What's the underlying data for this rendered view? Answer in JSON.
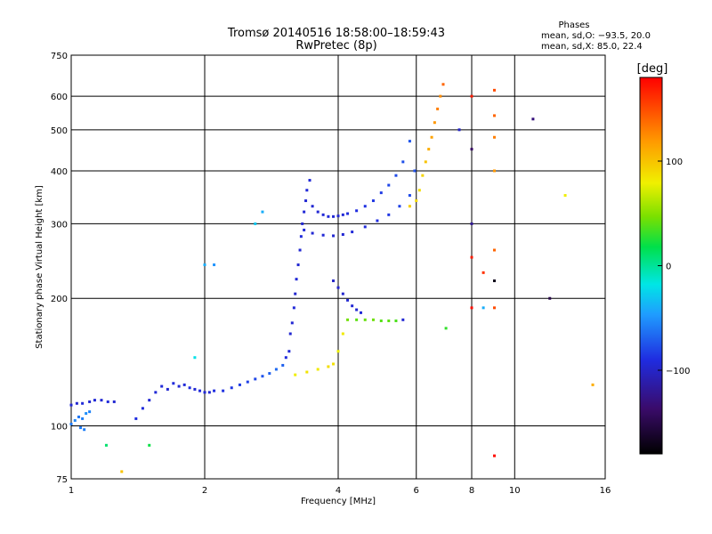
{
  "chart_data": {
    "type": "scatter",
    "title": "Tromsø 20140516 18:58:00–18:59:43",
    "subtitle": "RwPretec (8p)",
    "xlabel": "Frequency [MHz]",
    "ylabel": "Stationary phase Virtual Height [km]",
    "xscale": "log",
    "yscale": "log",
    "xlim": [
      1,
      16
    ],
    "ylim": [
      75,
      750
    ],
    "x_ticks": [
      1,
      2,
      4,
      6,
      8,
      10,
      16
    ],
    "x_tick_labels": [
      "1",
      "2",
      "4",
      "6",
      "8",
      "10",
      "16"
    ],
    "y_ticks": [
      75,
      100,
      200,
      300,
      400,
      500,
      600,
      750
    ],
    "y_tick_labels": [
      "75",
      "100",
      "200",
      "300",
      "400",
      "500",
      "600",
      "750"
    ],
    "grid": true,
    "colorbar": {
      "label": "[deg]",
      "range": [
        -180,
        180
      ],
      "ticks": [
        100,
        0,
        -100
      ],
      "tick_labels": [
        "100",
        "0",
        "−100"
      ],
      "colormap": "rainbow"
    },
    "stats": {
      "title": "Phases",
      "line1": "mean, sd,O: −93.5, 20.0",
      "line2": "mean, sd,X: 85.0, 22.4"
    },
    "points": [
      [
        1.0,
        112,
        -95
      ],
      [
        1.03,
        113,
        -97
      ],
      [
        1.06,
        113,
        -93
      ],
      [
        1.1,
        114,
        -96
      ],
      [
        1.13,
        115,
        -94
      ],
      [
        1.17,
        115,
        -95
      ],
      [
        1.21,
        114,
        -92
      ],
      [
        1.25,
        114,
        -96
      ],
      [
        1.0,
        101,
        -60
      ],
      [
        1.02,
        103,
        -55
      ],
      [
        1.04,
        105,
        -62
      ],
      [
        1.06,
        104,
        -58
      ],
      [
        1.08,
        107,
        -52
      ],
      [
        1.1,
        108,
        -57
      ],
      [
        1.05,
        99,
        -60
      ],
      [
        1.07,
        98,
        -58
      ],
      [
        1.4,
        104,
        -90
      ],
      [
        1.45,
        110,
        -92
      ],
      [
        1.5,
        115,
        -95
      ],
      [
        1.55,
        120,
        -94
      ],
      [
        1.6,
        124,
        -93
      ],
      [
        1.65,
        122,
        -96
      ],
      [
        1.7,
        126,
        -92
      ],
      [
        1.75,
        124,
        -95
      ],
      [
        1.8,
        125,
        -93
      ],
      [
        1.85,
        123,
        -91
      ],
      [
        1.9,
        122,
        -95
      ],
      [
        1.95,
        121,
        -92
      ],
      [
        2.0,
        120,
        -94
      ],
      [
        2.05,
        120,
        -96
      ],
      [
        2.1,
        121,
        -90
      ],
      [
        2.2,
        121,
        -88
      ],
      [
        2.3,
        123,
        -86
      ],
      [
        2.4,
        125,
        -84
      ],
      [
        2.5,
        127,
        -82
      ],
      [
        2.6,
        129,
        -80
      ],
      [
        2.7,
        131,
        -75
      ],
      [
        2.8,
        133,
        -70
      ],
      [
        2.9,
        136,
        -66
      ],
      [
        3.0,
        139,
        -70
      ],
      [
        3.05,
        145,
        -92
      ],
      [
        3.1,
        150,
        -94
      ],
      [
        3.12,
        165,
        -96
      ],
      [
        3.15,
        175,
        -95
      ],
      [
        3.18,
        190,
        -93
      ],
      [
        3.2,
        205,
        -97
      ],
      [
        3.22,
        222,
        -94
      ],
      [
        3.25,
        240,
        -96
      ],
      [
        3.28,
        260,
        -95
      ],
      [
        3.3,
        280,
        -92
      ],
      [
        3.32,
        300,
        -96
      ],
      [
        3.35,
        320,
        -94
      ],
      [
        3.38,
        340,
        -95
      ],
      [
        3.4,
        360,
        -93
      ],
      [
        3.45,
        380,
        -94
      ],
      [
        3.5,
        330,
        -96
      ],
      [
        3.6,
        320,
        -95
      ],
      [
        3.7,
        315,
        -94
      ],
      [
        3.8,
        312,
        -93
      ],
      [
        3.9,
        312,
        -95
      ],
      [
        4.0,
        313,
        -96
      ],
      [
        4.1,
        315,
        -94
      ],
      [
        4.2,
        317,
        -92
      ],
      [
        4.4,
        322,
        -90
      ],
      [
        4.6,
        330,
        -88
      ],
      [
        4.8,
        340,
        -86
      ],
      [
        5.0,
        355,
        -84
      ],
      [
        5.2,
        370,
        -80
      ],
      [
        5.4,
        390,
        -78
      ],
      [
        5.6,
        420,
        -76
      ],
      [
        5.8,
        470,
        -74
      ],
      [
        3.35,
        290,
        -93
      ],
      [
        3.5,
        285,
        -95
      ],
      [
        3.7,
        282,
        -94
      ],
      [
        3.9,
        281,
        -96
      ],
      [
        4.1,
        283,
        -95
      ],
      [
        4.3,
        287,
        -93
      ],
      [
        4.6,
        295,
        -92
      ],
      [
        4.9,
        305,
        -90
      ],
      [
        5.2,
        315,
        -86
      ],
      [
        5.5,
        330,
        -82
      ],
      [
        5.8,
        350,
        -78
      ],
      [
        5.95,
        400,
        -76
      ],
      [
        3.9,
        220,
        -100
      ],
      [
        4.0,
        212,
        -98
      ],
      [
        4.1,
        205,
        -97
      ],
      [
        4.2,
        198,
        -96
      ],
      [
        4.3,
        192,
        -95
      ],
      [
        4.4,
        188,
        -96
      ],
      [
        4.5,
        185,
        -94
      ],
      [
        4.2,
        178,
        45
      ],
      [
        4.4,
        178,
        40
      ],
      [
        4.6,
        178,
        42
      ],
      [
        4.8,
        178,
        44
      ],
      [
        5.0,
        177,
        38
      ],
      [
        5.2,
        177,
        40
      ],
      [
        5.4,
        177,
        36
      ],
      [
        5.6,
        178,
        -95
      ],
      [
        3.2,
        132,
        80
      ],
      [
        3.4,
        134,
        85
      ],
      [
        3.6,
        136,
        82
      ],
      [
        3.8,
        138,
        88
      ],
      [
        3.9,
        140,
        86
      ],
      [
        4.0,
        150,
        78
      ],
      [
        4.1,
        165,
        82
      ],
      [
        5.8,
        330,
        95
      ],
      [
        6.0,
        340,
        90
      ],
      [
        6.1,
        360,
        88
      ],
      [
        6.2,
        390,
        92
      ],
      [
        6.3,
        420,
        100
      ],
      [
        6.4,
        450,
        110
      ],
      [
        6.5,
        480,
        115
      ],
      [
        6.6,
        520,
        120
      ],
      [
        6.7,
        560,
        130
      ],
      [
        6.8,
        600,
        125
      ],
      [
        6.9,
        640,
        140
      ],
      [
        8.0,
        600,
        170
      ],
      [
        8.0,
        450,
        -140
      ],
      [
        8.0,
        300,
        -120
      ],
      [
        8.0,
        250,
        170
      ],
      [
        8.0,
        190,
        175
      ],
      [
        8.5,
        190,
        -40
      ],
      [
        8.5,
        230,
        160
      ],
      [
        9.0,
        620,
        150
      ],
      [
        9.0,
        540,
        140
      ],
      [
        9.0,
        480,
        130
      ],
      [
        9.0,
        400,
        120
      ],
      [
        9.0,
        260,
        140
      ],
      [
        9.0,
        220,
        -170
      ],
      [
        9.0,
        190,
        150
      ],
      [
        9.0,
        85,
        175
      ],
      [
        12.0,
        200,
        -150
      ],
      [
        13.0,
        350,
        80
      ],
      [
        15.0,
        125,
        110
      ],
      [
        11.0,
        530,
        -130
      ],
      [
        7.5,
        500,
        -100
      ],
      [
        7.0,
        170,
        30
      ],
      [
        2.0,
        240,
        -40
      ],
      [
        2.7,
        320,
        -40
      ],
      [
        2.6,
        300,
        -30
      ],
      [
        1.9,
        145,
        -20
      ],
      [
        2.1,
        240,
        -50
      ],
      [
        1.2,
        90,
        10
      ],
      [
        1.3,
        78,
        100
      ],
      [
        1.5,
        90,
        20
      ]
    ]
  }
}
